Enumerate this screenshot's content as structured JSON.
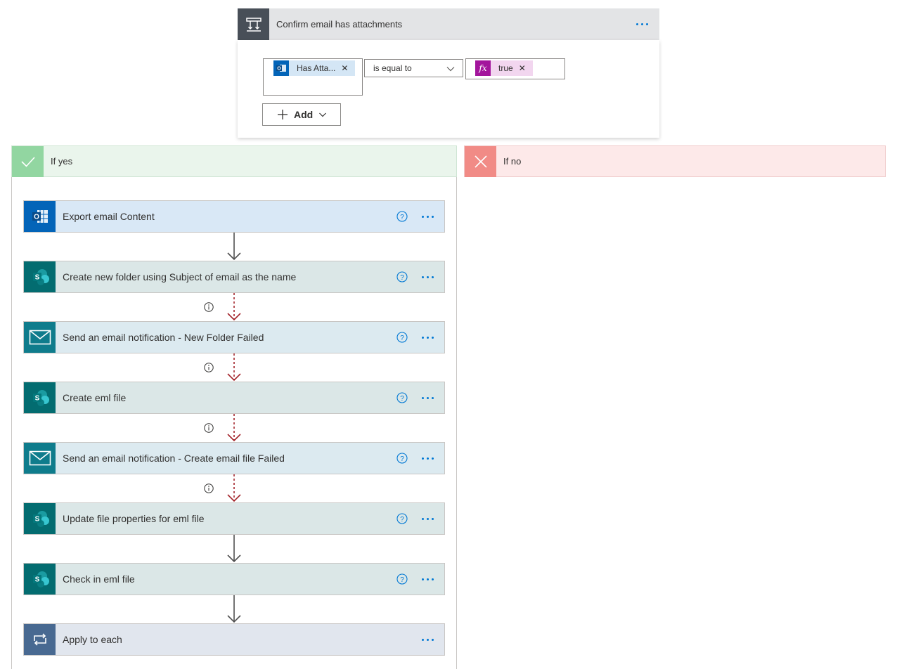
{
  "condition": {
    "title": "Confirm email has attachments",
    "left_token": "Has Atta...",
    "operator": "is equal to",
    "right_token": "true",
    "add_label": "Add"
  },
  "branches": {
    "yes_label": "If yes",
    "no_label": "If no"
  },
  "actions": [
    {
      "title": "Export email Content",
      "icon": "outlook-icon"
    },
    {
      "title": "Create new folder using Subject of email as the name",
      "icon": "sharepoint-icon"
    },
    {
      "title": "Send an email notification - New Folder Failed",
      "icon": "mail-icon"
    },
    {
      "title": "Create eml file",
      "icon": "sharepoint-icon"
    },
    {
      "title": "Send an email notification - Create email file Failed",
      "icon": "mail-icon"
    },
    {
      "title": "Update file properties for eml file",
      "icon": "sharepoint-icon"
    },
    {
      "title": "Check in eml file",
      "icon": "sharepoint-icon"
    },
    {
      "title": "Apply to each",
      "icon": "loop-icon"
    }
  ],
  "colors": {
    "accent": "#0078d4",
    "sharepoint": "#036c70",
    "outlook": "#0364b8",
    "mail": "#0f7c8c",
    "loop": "#486991",
    "failure_arrow": "#a4262c",
    "yes": "#92d6a1",
    "no": "#f18b86",
    "expression": "#a3159c"
  }
}
